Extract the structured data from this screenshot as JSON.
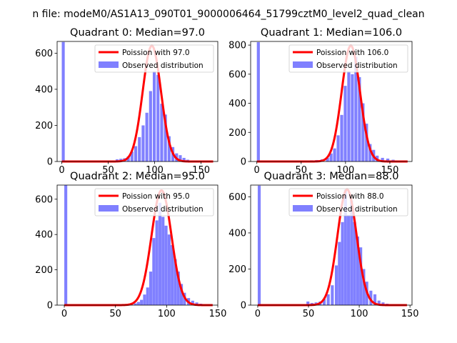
{
  "figure": {
    "suptitle": "n file: modeM0/AS1A13_090T01_9000006464_51799cztM0_level2_quad_clean"
  },
  "chart_data": [
    {
      "type": "bar+line",
      "title": "Quadrant 0: Median=97.0",
      "median": 97.0,
      "xlim": [
        -5,
        168
      ],
      "ylim": [
        0,
        665
      ],
      "xticks": [
        0,
        50,
        100,
        150
      ],
      "yticks": [
        0,
        200,
        400,
        600
      ],
      "legend_position": "upper right",
      "series": [
        {
          "name": "Poission with 97.0",
          "kind": "line",
          "color": "#ff0000",
          "peak": 641
        },
        {
          "name": "Observed distribution",
          "kind": "histogram",
          "color": "#8080ff",
          "bin_width": 3.2,
          "bin_starts": [
            0,
            54,
            58,
            62,
            66,
            70,
            74,
            78,
            82,
            86,
            90,
            94,
            98,
            102,
            106,
            110,
            114,
            118,
            122,
            126,
            130,
            134,
            138,
            142,
            146,
            150,
            154
          ],
          "counts": [
            662,
            6,
            12,
            15,
            18,
            28,
            55,
            85,
            135,
            200,
            270,
            390,
            500,
            480,
            320,
            260,
            140,
            80,
            45,
            35,
            20,
            10,
            5,
            3,
            3,
            2,
            1
          ]
        }
      ]
    },
    {
      "type": "bar+line",
      "title": "Quadrant 1: Median=106.0",
      "median": 106.0,
      "xlim": [
        -7,
        175
      ],
      "ylim": [
        0,
        825
      ],
      "xticks": [
        0,
        50,
        100,
        150
      ],
      "yticks": [
        0,
        200,
        400,
        600,
        800
      ],
      "legend_position": "upper right",
      "series": [
        {
          "name": "Poission with 106.0",
          "kind": "line",
          "color": "#ff0000",
          "peak": 796
        },
        {
          "name": "Observed distribution",
          "kind": "histogram",
          "color": "#8080ff",
          "bin_width": 3.4,
          "bin_starts": [
            0,
            52,
            60,
            66,
            72,
            78,
            82,
            86,
            90,
            94,
            98,
            102,
            106,
            110,
            114,
            118,
            122,
            126,
            130,
            134,
            140,
            146,
            152,
            158
          ],
          "counts": [
            820,
            3,
            8,
            10,
            15,
            25,
            55,
            90,
            180,
            320,
            520,
            620,
            600,
            720,
            580,
            400,
            260,
            120,
            80,
            40,
            25,
            20,
            12,
            3
          ]
        }
      ]
    },
    {
      "type": "bar+line",
      "title": "Quadrant 2: Median=95.0",
      "median": 95.0,
      "xlim": [
        -7,
        150
      ],
      "ylim": [
        0,
        680
      ],
      "xticks": [
        0,
        50,
        100,
        150
      ],
      "yticks": [
        0,
        200,
        400,
        600
      ],
      "legend_position": "upper right",
      "series": [
        {
          "name": "Poission with 95.0",
          "kind": "line",
          "color": "#ff0000",
          "peak": 650
        },
        {
          "name": "Observed distribution",
          "kind": "histogram",
          "color": "#8080ff",
          "bin_width": 2.9,
          "bin_starts": [
            0,
            58,
            64,
            68,
            71,
            74,
            77,
            80,
            83,
            86,
            89,
            92,
            95,
            98,
            101,
            104,
            107,
            110,
            113,
            116,
            120,
            124,
            128,
            132,
            136,
            140
          ],
          "counts": [
            680,
            4,
            6,
            10,
            18,
            30,
            60,
            100,
            190,
            380,
            480,
            580,
            500,
            450,
            400,
            340,
            260,
            190,
            120,
            70,
            40,
            25,
            15,
            8,
            4,
            2
          ]
        }
      ]
    },
    {
      "type": "bar+line",
      "title": "Quadrant 3: Median=88.0",
      "median": 88.0,
      "xlim": [
        -7,
        152
      ],
      "ylim": [
        0,
        665
      ],
      "xticks": [
        0,
        50,
        100,
        150
      ],
      "yticks": [
        0,
        200,
        400,
        600
      ],
      "legend_position": "upper right",
      "series": [
        {
          "name": "Poission with 88.0",
          "kind": "line",
          "color": "#ff0000",
          "peak": 641
        },
        {
          "name": "Observed distribution",
          "kind": "histogram",
          "color": "#8080ff",
          "bin_width": 2.9,
          "bin_starts": [
            0,
            48,
            52,
            56,
            60,
            64,
            68,
            72,
            76,
            79,
            82,
            85,
            88,
            91,
            94,
            97,
            100,
            103,
            106,
            110,
            114,
            118,
            122,
            126,
            130,
            134,
            138
          ],
          "counts": [
            662,
            20,
            12,
            15,
            20,
            35,
            60,
            110,
            220,
            350,
            460,
            640,
            500,
            580,
            460,
            380,
            320,
            200,
            130,
            80,
            60,
            25,
            15,
            8,
            4,
            2,
            1
          ]
        }
      ]
    }
  ]
}
